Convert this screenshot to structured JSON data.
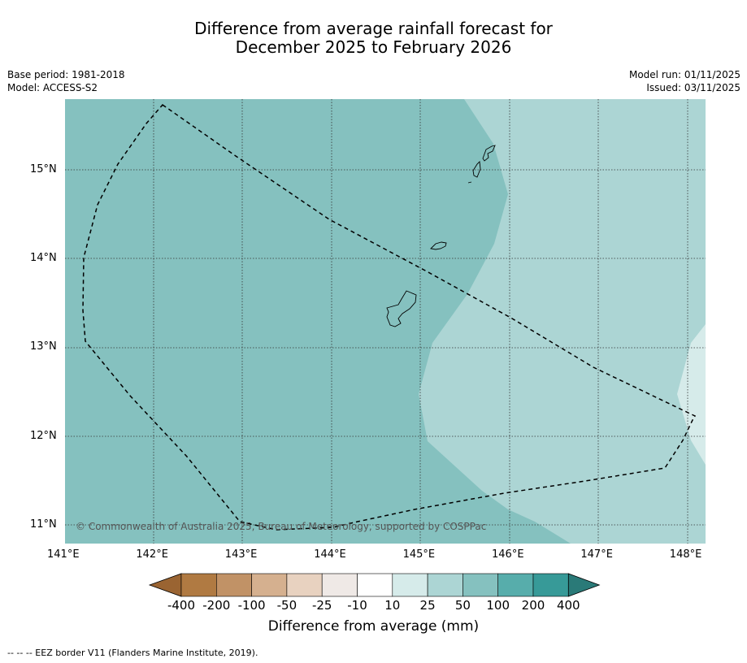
{
  "title": {
    "line1": "Difference from average rainfall forecast for",
    "line2": "December 2025 to February 2026"
  },
  "meta": {
    "base_period": "Base period: 1981-2018",
    "model": "Model: ACCESS-S2",
    "model_run": "Model run: 01/11/2025",
    "issued": "Issued: 03/11/2025"
  },
  "map": {
    "lon_range": [
      141.0,
      148.2
    ],
    "lat_range": [
      10.8,
      15.8
    ],
    "lon_labels": [
      "141°E",
      "142°E",
      "143°E",
      "144°E",
      "145°E",
      "146°E",
      "147°E",
      "148°E"
    ],
    "lat_labels": [
      "15°N",
      "14°N",
      "13°N",
      "12°N",
      "11°N"
    ],
    "copyright": "© Commonwealth of Australia 2025, Bureau of Meteorology, supported by COSPPac",
    "colors": {
      "band_50_100": "#85c1bf",
      "band_25_50": "#acd5d4",
      "band_10_25": "#d6ebea"
    }
  },
  "colorbar": {
    "tick_labels": [
      "-400",
      "-200",
      "-100",
      "-50",
      "-25",
      "-10",
      "10",
      "25",
      "50",
      "100",
      "200",
      "400"
    ],
    "colors": [
      "#9a6432",
      "#b07a42",
      "#c19266",
      "#d5b08f",
      "#e8d2c0",
      "#efe9e6",
      "#ffffff",
      "#d6ebea",
      "#acd5d4",
      "#85c1bf",
      "#57adab",
      "#379a98",
      "#2a7a78"
    ],
    "title": "Difference from average (mm)"
  },
  "footnote": "--  --  -- EEZ border V11 (Flanders Marine Institute, 2019)."
}
